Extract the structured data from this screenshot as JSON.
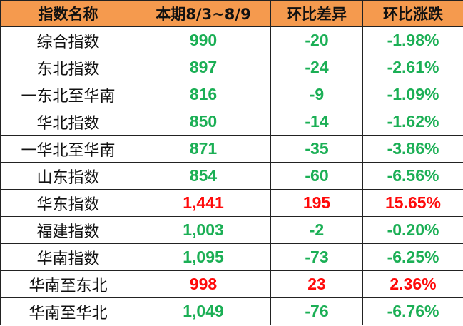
{
  "colors": {
    "header_bg": "#F59A4E",
    "down": "#1BAF55",
    "up": "#FF0A0A"
  },
  "headers": [
    "指数名称",
    "本期8/3~8/9",
    "环比差异",
    "环比涨跌"
  ],
  "rows": [
    {
      "name": "综合指数",
      "value": "990",
      "diff": "-20",
      "pct": "-1.98%",
      "trend": "down"
    },
    {
      "name": "东北指数",
      "value": "897",
      "diff": "-24",
      "pct": "-2.61%",
      "trend": "down"
    },
    {
      "name": "一东北至华南",
      "value": "816",
      "diff": "-9",
      "pct": "-1.09%",
      "trend": "down"
    },
    {
      "name": "华北指数",
      "value": "850",
      "diff": "-14",
      "pct": "-1.62%",
      "trend": "down"
    },
    {
      "name": "一华北至华南",
      "value": "871",
      "diff": "-35",
      "pct": "-3.86%",
      "trend": "down"
    },
    {
      "name": "山东指数",
      "value": "854",
      "diff": "-60",
      "pct": "-6.56%",
      "trend": "down"
    },
    {
      "name": "华东指数",
      "value": "1,441",
      "diff": "195",
      "pct": "15.65%",
      "trend": "up"
    },
    {
      "name": "福建指数",
      "value": "1,003",
      "diff": "-2",
      "pct": "-0.20%",
      "trend": "down"
    },
    {
      "name": "华南指数",
      "value": "1,095",
      "diff": "-73",
      "pct": "-6.25%",
      "trend": "down"
    },
    {
      "name": "华南至东北",
      "value": "998",
      "diff": "23",
      "pct": "2.36%",
      "trend": "up"
    },
    {
      "name": "华南至华北",
      "value": "1,049",
      "diff": "-76",
      "pct": "-6.76%",
      "trend": "down"
    }
  ]
}
